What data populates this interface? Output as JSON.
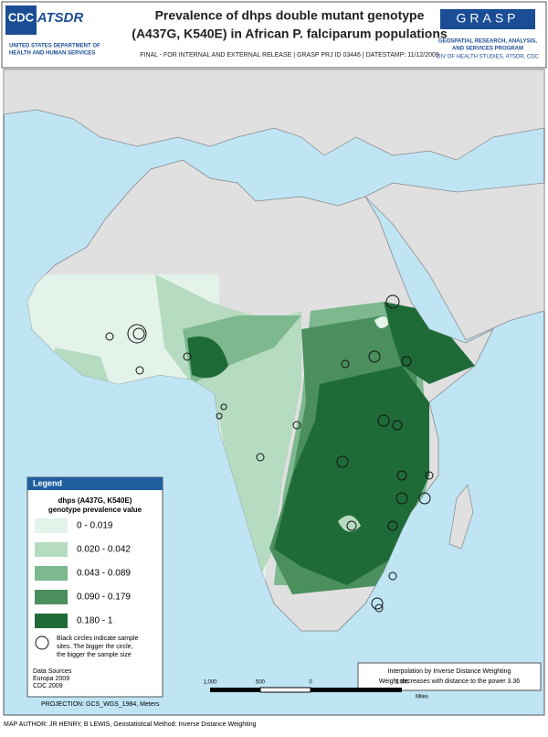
{
  "header": {
    "cdc": "CDC",
    "atsdr": "ATSDR",
    "hhs": [
      "UNITED STATES DEPARTMENT OF",
      "HEALTH AND HUMAN SERVICES"
    ],
    "title": [
      "Prevalence of dhps double mutant genotype",
      "(A437G, K540E) in African P. falciparum populations"
    ],
    "release": "FINAL - FOR INTERNAL AND EXTERNAL RELEASE | GRASP PRJ ID 03446 | DATESTAMP: 11/12/2009",
    "grasp": "GRASP",
    "grasp_text": [
      "GEOSPATIAL RESEARCH, ANALYSIS,",
      "AND SERVICES PROGRAM",
      "DIV OF HEALTH STUDIES, ATSDR, CDC"
    ]
  },
  "legend": {
    "title": "Legend",
    "heading": [
      "dhps (A437G, K540E)",
      "genotype prevalence value"
    ],
    "classes": [
      {
        "label": "0 - 0.019",
        "color": "#e4f3ea"
      },
      {
        "label": "0.020 - 0.042",
        "color": "#b5dbc0"
      },
      {
        "label": "0.043 - 0.089",
        "color": "#7db88f"
      },
      {
        "label": "0.090 - 0.179",
        "color": "#4a8f5c"
      },
      {
        "label": "0.180 - 1",
        "color": "#1f6b38"
      }
    ],
    "circles_note": [
      "Black circles indicate sample",
      "sites. The bigger the circle,",
      "the bigger the sample size"
    ],
    "sources": [
      "Data Sources",
      "Europa 2009",
      "CDC 2009"
    ]
  },
  "interpolation": [
    "Interpolation by Inverse Distance Weighting",
    "Weight decreases with distance to the power 3.36"
  ],
  "scale": {
    "labels": [
      "1,000",
      "500",
      "0",
      "1,000"
    ],
    "unit": "Miles"
  },
  "projection": "PROJECTION: GCS_WGS_1984,  Meters",
  "footer": "MAP AUTHOR: JR HENRY, B LEWIS, Geostatistical Method: Inverse Distance Weighting"
}
